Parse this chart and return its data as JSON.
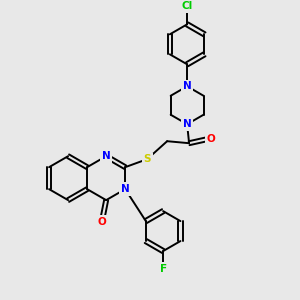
{
  "bg_color": "#e8e8e8",
  "atom_colors": {
    "N": "#0000ff",
    "O": "#ff0000",
    "S": "#cccc00",
    "F": "#00cc00",
    "Cl": "#00cc00",
    "C": "#000000"
  },
  "bond_color": "#000000",
  "figsize": [
    3.0,
    3.0
  ],
  "dpi": 100
}
